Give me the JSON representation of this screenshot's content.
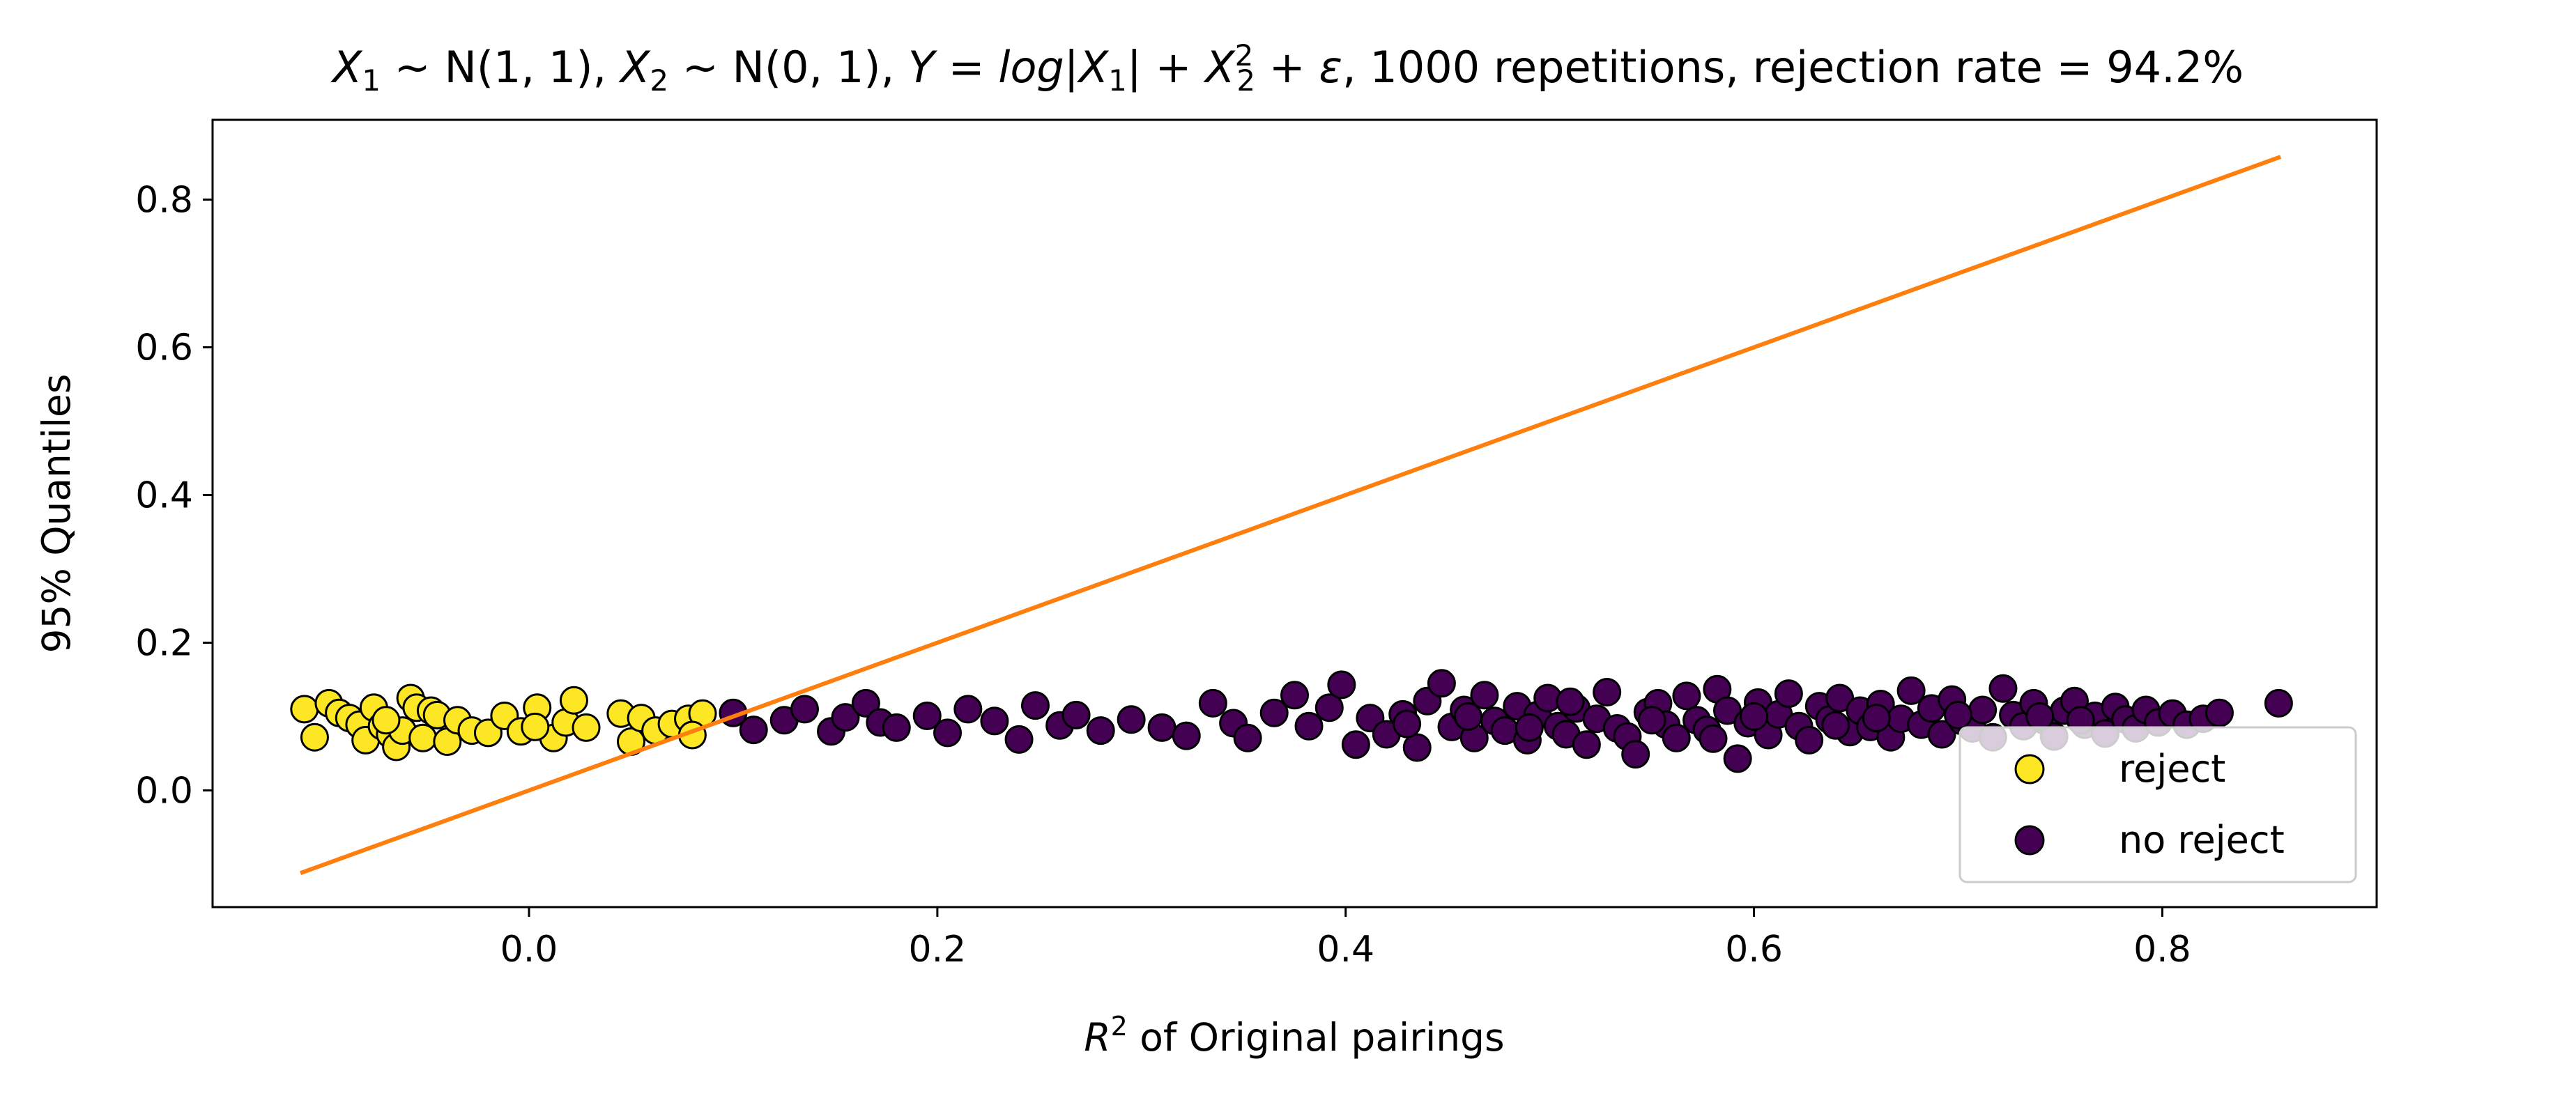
{
  "chart_data": {
    "type": "scatter",
    "title": {
      "x1": "X",
      "x1_sub": "1",
      "x1_dist": " ∼ N(1, 1), ",
      "x2": "X",
      "x2_sub": "2",
      "x2_dist": " ∼ N(0, 1), ",
      "y_eq_start": "Y = log|X",
      "y_eq_sub1": "1",
      "y_eq_mid": "| + X",
      "y_eq_sup": "2",
      "y_eq_sub2": "2",
      "y_eq_end": " + ε",
      "rest": ", 1000 repetitions, rejection rate = 94.2%"
    },
    "xlabel": {
      "r": "R",
      "sup": "2",
      "rest": " of Original pairings"
    },
    "ylabel": "95% Quantiles",
    "xlim": [
      -0.155,
      0.905
    ],
    "ylim": [
      -0.158,
      0.908
    ],
    "xticks": [
      0.0,
      0.2,
      0.4,
      0.6,
      0.8
    ],
    "xtick_labels": [
      "0.0",
      "0.2",
      "0.4",
      "0.6",
      "0.8"
    ],
    "yticks": [
      0.0,
      0.2,
      0.4,
      0.6,
      0.8
    ],
    "ytick_labels": [
      "0.0",
      "0.2",
      "0.4",
      "0.6",
      "0.8"
    ],
    "grid": false,
    "legend": {
      "placement": "lower-right",
      "entries": [
        {
          "label": "reject",
          "color": "#fde725"
        },
        {
          "label": "no reject",
          "color": "#440154"
        }
      ]
    },
    "reference_line": {
      "color": "#ff7f0e",
      "x": [
        -0.111,
        0.857
      ],
      "y": [
        -0.111,
        0.857
      ]
    },
    "series": [
      {
        "name": "reject",
        "color": "#fde725",
        "points": [
          [
            -0.11,
            0.11
          ],
          [
            -0.105,
            0.072
          ],
          [
            -0.098,
            0.118
          ],
          [
            -0.093,
            0.105
          ],
          [
            -0.088,
            0.098
          ],
          [
            -0.083,
            0.089
          ],
          [
            -0.08,
            0.068
          ],
          [
            -0.076,
            0.112
          ],
          [
            -0.072,
            0.087
          ],
          [
            -0.068,
            0.076
          ],
          [
            -0.065,
            0.059
          ],
          [
            -0.062,
            0.081
          ],
          [
            -0.058,
            0.125
          ],
          [
            -0.055,
            0.112
          ],
          [
            -0.052,
            0.071
          ],
          [
            -0.048,
            0.108
          ],
          [
            -0.045,
            0.102
          ],
          [
            -0.04,
            0.066
          ],
          [
            -0.035,
            0.095
          ],
          [
            -0.028,
            0.081
          ],
          [
            -0.02,
            0.078
          ],
          [
            -0.012,
            0.101
          ],
          [
            -0.004,
            0.08
          ],
          [
            0.004,
            0.112
          ],
          [
            0.012,
            0.071
          ],
          [
            0.018,
            0.092
          ],
          [
            0.022,
            0.122
          ],
          [
            0.028,
            0.085
          ],
          [
            0.045,
            0.104
          ],
          [
            0.05,
            0.066
          ],
          [
            0.055,
            0.098
          ],
          [
            0.062,
            0.081
          ],
          [
            0.07,
            0.09
          ],
          [
            0.078,
            0.097
          ],
          [
            0.085,
            0.104
          ],
          [
            0.08,
            0.075
          ],
          [
            0.003,
            0.086
          ],
          [
            -0.07,
            0.095
          ]
        ]
      },
      {
        "name": "no reject",
        "color": "#440154",
        "points": [
          [
            0.1,
            0.105
          ],
          [
            0.11,
            0.082
          ],
          [
            0.125,
            0.095
          ],
          [
            0.135,
            0.11
          ],
          [
            0.148,
            0.08
          ],
          [
            0.155,
            0.099
          ],
          [
            0.165,
            0.118
          ],
          [
            0.172,
            0.092
          ],
          [
            0.18,
            0.085
          ],
          [
            0.195,
            0.101
          ],
          [
            0.205,
            0.078
          ],
          [
            0.215,
            0.11
          ],
          [
            0.228,
            0.094
          ],
          [
            0.24,
            0.069
          ],
          [
            0.248,
            0.115
          ],
          [
            0.26,
            0.088
          ],
          [
            0.268,
            0.102
          ],
          [
            0.28,
            0.081
          ],
          [
            0.295,
            0.096
          ],
          [
            0.31,
            0.085
          ],
          [
            0.322,
            0.074
          ],
          [
            0.335,
            0.118
          ],
          [
            0.345,
            0.091
          ],
          [
            0.352,
            0.071
          ],
          [
            0.365,
            0.105
          ],
          [
            0.375,
            0.129
          ],
          [
            0.382,
            0.087
          ],
          [
            0.392,
            0.112
          ],
          [
            0.398,
            0.143
          ],
          [
            0.405,
            0.062
          ],
          [
            0.412,
            0.098
          ],
          [
            0.42,
            0.076
          ],
          [
            0.428,
            0.103
          ],
          [
            0.435,
            0.058
          ],
          [
            0.44,
            0.121
          ],
          [
            0.447,
            0.145
          ],
          [
            0.452,
            0.086
          ],
          [
            0.458,
            0.109
          ],
          [
            0.463,
            0.071
          ],
          [
            0.468,
            0.129
          ],
          [
            0.473,
            0.094
          ],
          [
            0.478,
            0.081
          ],
          [
            0.484,
            0.114
          ],
          [
            0.489,
            0.068
          ],
          [
            0.494,
            0.102
          ],
          [
            0.499,
            0.125
          ],
          [
            0.504,
            0.087
          ],
          [
            0.508,
            0.076
          ],
          [
            0.513,
            0.111
          ],
          [
            0.518,
            0.062
          ],
          [
            0.523,
            0.097
          ],
          [
            0.528,
            0.133
          ],
          [
            0.533,
            0.084
          ],
          [
            0.538,
            0.073
          ],
          [
            0.542,
            0.049
          ],
          [
            0.548,
            0.106
          ],
          [
            0.553,
            0.118
          ],
          [
            0.557,
            0.089
          ],
          [
            0.562,
            0.071
          ],
          [
            0.567,
            0.128
          ],
          [
            0.572,
            0.095
          ],
          [
            0.577,
            0.082
          ],
          [
            0.582,
            0.137
          ],
          [
            0.587,
            0.108
          ],
          [
            0.592,
            0.043
          ],
          [
            0.597,
            0.091
          ],
          [
            0.602,
            0.119
          ],
          [
            0.607,
            0.075
          ],
          [
            0.612,
            0.103
          ],
          [
            0.617,
            0.131
          ],
          [
            0.622,
            0.087
          ],
          [
            0.627,
            0.068
          ],
          [
            0.632,
            0.114
          ],
          [
            0.637,
            0.096
          ],
          [
            0.642,
            0.125
          ],
          [
            0.647,
            0.079
          ],
          [
            0.652,
            0.108
          ],
          [
            0.657,
            0.086
          ],
          [
            0.662,
            0.117
          ],
          [
            0.667,
            0.072
          ],
          [
            0.672,
            0.097
          ],
          [
            0.677,
            0.135
          ],
          [
            0.682,
            0.089
          ],
          [
            0.687,
            0.111
          ],
          [
            0.692,
            0.076
          ],
          [
            0.697,
            0.123
          ],
          [
            0.702,
            0.094
          ],
          [
            0.707,
            0.084
          ],
          [
            0.712,
            0.109
          ],
          [
            0.717,
            0.072
          ],
          [
            0.722,
            0.138
          ],
          [
            0.727,
            0.102
          ],
          [
            0.732,
            0.087
          ],
          [
            0.737,
            0.118
          ],
          [
            0.742,
            0.095
          ],
          [
            0.747,
            0.073
          ],
          [
            0.752,
            0.108
          ],
          [
            0.757,
            0.121
          ],
          [
            0.762,
            0.089
          ],
          [
            0.767,
            0.101
          ],
          [
            0.772,
            0.077
          ],
          [
            0.777,
            0.113
          ],
          [
            0.782,
            0.096
          ],
          [
            0.787,
            0.084
          ],
          [
            0.792,
            0.109
          ],
          [
            0.798,
            0.092
          ],
          [
            0.805,
            0.104
          ],
          [
            0.812,
            0.089
          ],
          [
            0.82,
            0.097
          ],
          [
            0.828,
            0.105
          ],
          [
            0.857,
            0.118
          ],
          [
            0.43,
            0.09
          ],
          [
            0.46,
            0.1
          ],
          [
            0.49,
            0.085
          ],
          [
            0.51,
            0.12
          ],
          [
            0.55,
            0.095
          ],
          [
            0.58,
            0.07
          ],
          [
            0.6,
            0.1
          ],
          [
            0.64,
            0.088
          ],
          [
            0.66,
            0.098
          ],
          [
            0.7,
            0.102
          ],
          [
            0.74,
            0.1
          ],
          [
            0.76,
            0.095
          ]
        ]
      }
    ]
  }
}
